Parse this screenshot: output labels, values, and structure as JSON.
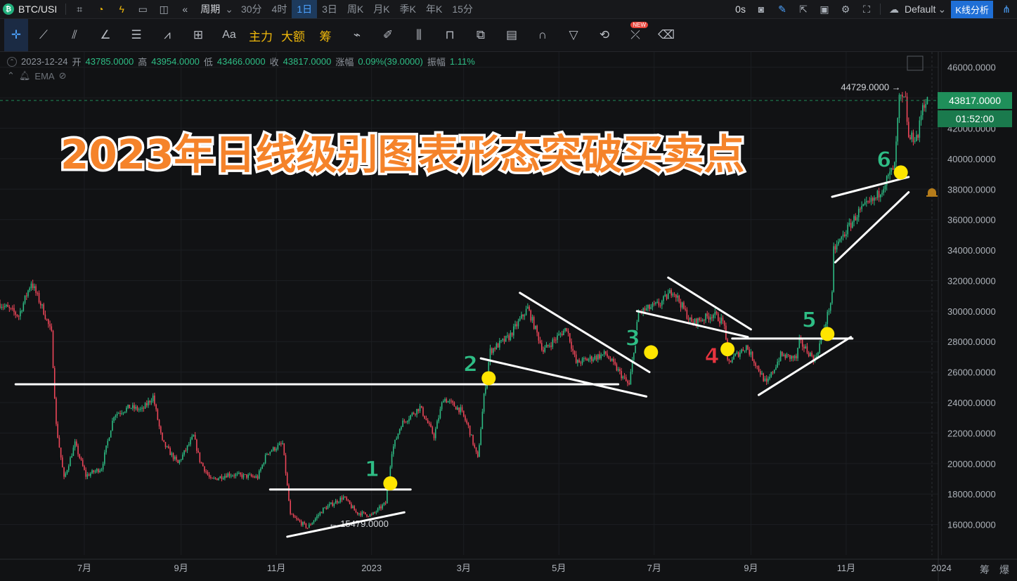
{
  "app": {
    "symbol": "BTC/USI",
    "timeframes": [
      {
        "label": "周期",
        "active": false,
        "period": true
      },
      {
        "label": "30分",
        "active": false
      },
      {
        "label": "4时",
        "active": false
      },
      {
        "label": "1日",
        "active": true
      },
      {
        "label": "3日",
        "active": false
      },
      {
        "label": "周K",
        "active": false
      },
      {
        "label": "月K",
        "active": false
      },
      {
        "label": "季K",
        "active": false
      },
      {
        "label": "年K",
        "active": false
      },
      {
        "label": "15分",
        "active": false
      }
    ],
    "countdown_label": "0s",
    "theme_label": "Default",
    "kline_button": "K线分析",
    "tools_text": [
      "Aa",
      "主力",
      "大额",
      "筹"
    ],
    "new_badge": "NEW"
  },
  "ohlc": {
    "date": "2023-12-24",
    "open_label": "开",
    "open": "43785.0000",
    "high_label": "高",
    "high": "43954.0000",
    "low_label": "低",
    "low": "43466.0000",
    "close_label": "收",
    "close": "43817.0000",
    "change_label": "涨幅",
    "change": "0.09%(39.0000)",
    "amp_label": "振幅",
    "amp": "1.11%",
    "indicator": "EMA"
  },
  "bottom_right": [
    "筹",
    "爆"
  ],
  "colors": {
    "up": "#2ebd85",
    "down": "#f0475a",
    "annotation": "#f5832a",
    "marker": "#ffe500",
    "lastprice": "#1f8f5a"
  },
  "chart_data": {
    "type": "candlestick",
    "title": "2023年日线级别图表形态突破买卖点",
    "ylim": [
      14000,
      47000
    ],
    "yticks": [
      16000,
      18000,
      20000,
      22000,
      24000,
      26000,
      28000,
      30000,
      32000,
      34000,
      36000,
      38000,
      40000,
      42000,
      44000,
      46000
    ],
    "ytick_labels": [
      "16000.0000",
      "18000.0000",
      "20000.0000",
      "22000.0000",
      "24000.0000",
      "26000.0000",
      "28000.0000",
      "30000.0000",
      "32000.0000",
      "34000.0000",
      "36000.0000",
      "38000.0000",
      "40000.0000",
      "42000.0000",
      "44000.0000",
      "46000.0000"
    ],
    "xlim": [
      "2022-05-08",
      "2023-12-30"
    ],
    "xticks": [
      {
        "date": "2022-07-01",
        "label": "7月"
      },
      {
        "date": "2022-09-01",
        "label": "9月"
      },
      {
        "date": "2022-11-01",
        "label": "11月"
      },
      {
        "date": "2023-01-01",
        "label": "2023"
      },
      {
        "date": "2023-03-01",
        "label": "3月"
      },
      {
        "date": "2023-05-01",
        "label": "5月"
      },
      {
        "date": "2023-07-01",
        "label": "7月"
      },
      {
        "date": "2023-09-01",
        "label": "9月"
      },
      {
        "date": "2023-11-01",
        "label": "11月"
      },
      {
        "date": "2024-01-01",
        "label": "2024"
      }
    ],
    "price_path": [
      [
        "2022-05-08",
        30500
      ],
      [
        "2022-05-20",
        29700
      ],
      [
        "2022-05-28",
        31900
      ],
      [
        "2022-06-05",
        30000
      ],
      [
        "2022-06-10",
        28500
      ],
      [
        "2022-06-13",
        22500
      ],
      [
        "2022-06-18",
        19000
      ],
      [
        "2022-06-25",
        21300
      ],
      [
        "2022-07-02",
        19200
      ],
      [
        "2022-07-12",
        19700
      ],
      [
        "2022-07-20",
        23200
      ],
      [
        "2022-07-30",
        23700
      ],
      [
        "2022-08-07",
        23500
      ],
      [
        "2022-08-14",
        24400
      ],
      [
        "2022-08-20",
        21400
      ],
      [
        "2022-08-30",
        20000
      ],
      [
        "2022-09-09",
        21800
      ],
      [
        "2022-09-13",
        20200
      ],
      [
        "2022-09-20",
        18900
      ],
      [
        "2022-10-01",
        19300
      ],
      [
        "2022-10-10",
        19200
      ],
      [
        "2022-10-20",
        19100
      ],
      [
        "2022-10-26",
        20700
      ],
      [
        "2022-11-05",
        21300
      ],
      [
        "2022-11-08",
        18500
      ],
      [
        "2022-11-10",
        16600
      ],
      [
        "2022-11-21",
        15800
      ],
      [
        "2022-12-01",
        17000
      ],
      [
        "2022-12-14",
        17800
      ],
      [
        "2022-12-22",
        16800
      ],
      [
        "2023-01-01",
        16600
      ],
      [
        "2023-01-10",
        17400
      ],
      [
        "2023-01-14",
        20800
      ],
      [
        "2023-01-20",
        22600
      ],
      [
        "2023-02-01",
        23700
      ],
      [
        "2023-02-10",
        21800
      ],
      [
        "2023-02-16",
        24300
      ],
      [
        "2023-02-27",
        23500
      ],
      [
        "2023-03-04",
        22400
      ],
      [
        "2023-03-10",
        20300
      ],
      [
        "2023-03-14",
        24400
      ],
      [
        "2023-03-18",
        27400
      ],
      [
        "2023-03-30",
        28300
      ],
      [
        "2023-04-11",
        30200
      ],
      [
        "2023-04-21",
        27400
      ],
      [
        "2023-05-06",
        28900
      ],
      [
        "2023-05-12",
        26600
      ],
      [
        "2023-05-31",
        27200
      ],
      [
        "2023-06-10",
        25800
      ],
      [
        "2023-06-15",
        25100
      ],
      [
        "2023-06-21",
        29900
      ],
      [
        "2023-07-05",
        30500
      ],
      [
        "2023-07-13",
        31400
      ],
      [
        "2023-07-25",
        29200
      ],
      [
        "2023-08-08",
        29800
      ],
      [
        "2023-08-15",
        29200
      ],
      [
        "2023-08-17",
        26600
      ],
      [
        "2023-08-29",
        27700
      ],
      [
        "2023-09-11",
        25200
      ],
      [
        "2023-09-20",
        27100
      ],
      [
        "2023-09-30",
        26900
      ],
      [
        "2023-10-02",
        28000
      ],
      [
        "2023-10-12",
        26800
      ],
      [
        "2023-10-17",
        28500
      ],
      [
        "2023-10-23",
        31000
      ],
      [
        "2023-10-24",
        34000
      ],
      [
        "2023-11-09",
        36500
      ],
      [
        "2023-11-20",
        37400
      ],
      [
        "2023-12-02",
        39500
      ],
      [
        "2023-12-05",
        43900
      ],
      [
        "2023-12-09",
        43800
      ],
      [
        "2023-12-11",
        41300
      ],
      [
        "2023-12-17",
        41500
      ],
      [
        "2023-12-20",
        43600
      ],
      [
        "2023-12-24",
        43817
      ]
    ],
    "last_price": {
      "value": 43817,
      "label": "43817.0000",
      "timer": "01:52:00"
    },
    "annotations": {
      "high_label": {
        "date": "2023-12-06",
        "value": 44729,
        "text": "44729.0000 →"
      },
      "low_label": {
        "date": "2022-11-21",
        "value": 15479,
        "text": "← 15479.0000"
      }
    },
    "trendlines": [
      [
        [
          "2022-05-18",
          25200
        ],
        [
          "2023-06-08",
          25200
        ]
      ],
      [
        [
          "2022-10-28",
          18300
        ],
        [
          "2023-01-26",
          18300
        ]
      ],
      [
        [
          "2022-11-08",
          15200
        ],
        [
          "2023-01-22",
          16800
        ]
      ],
      [
        [
          "2023-03-12",
          26900
        ],
        [
          "2023-06-26",
          24400
        ]
      ],
      [
        [
          "2023-04-06",
          31200
        ],
        [
          "2023-06-28",
          26000
        ]
      ],
      [
        [
          "2023-06-20",
          30000
        ],
        [
          "2023-08-30",
          28300
        ]
      ],
      [
        [
          "2023-07-10",
          32200
        ],
        [
          "2023-09-01",
          28800
        ]
      ],
      [
        [
          "2023-08-20",
          28200
        ],
        [
          "2023-11-05",
          28200
        ]
      ],
      [
        [
          "2023-09-06",
          24500
        ],
        [
          "2023-11-04",
          28300
        ]
      ],
      [
        [
          "2023-10-25",
          33200
        ],
        [
          "2023-12-11",
          37800
        ]
      ],
      [
        [
          "2023-10-23",
          37500
        ],
        [
          "2023-12-11",
          38800
        ]
      ]
    ],
    "breakout_points": [
      {
        "n": "1",
        "date": "2023-01-13",
        "value": 18700,
        "color": "#2ebd85"
      },
      {
        "n": "2",
        "date": "2023-03-17",
        "value": 25600,
        "color": "#2ebd85"
      },
      {
        "n": "3",
        "date": "2023-06-29",
        "value": 27300,
        "color": "#2ebd85"
      },
      {
        "n": "4",
        "date": "2023-08-17",
        "value": 27500,
        "color": "#e8343f"
      },
      {
        "n": "5",
        "date": "2023-10-20",
        "value": 28500,
        "color": "#2ebd85"
      },
      {
        "n": "6",
        "date": "2023-12-06",
        "value": 39100,
        "color": "#2ebd85"
      }
    ]
  }
}
